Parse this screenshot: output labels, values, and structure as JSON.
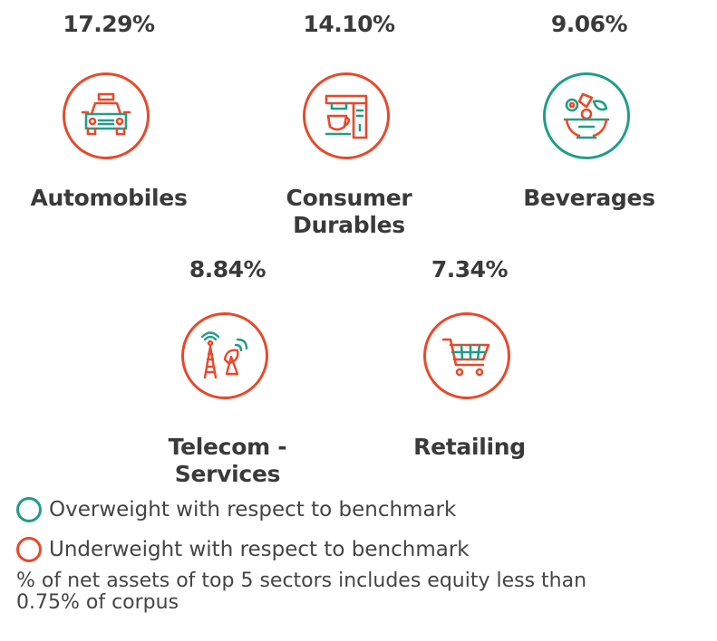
{
  "sectors": [
    {
      "pct": "17.29%",
      "name": "Automobiles",
      "icon": "car-icon",
      "weight": "underweight"
    },
    {
      "pct": "14.10%",
      "name": "Consumer Durables",
      "icon": "mixer-icon",
      "weight": "underweight"
    },
    {
      "pct": "9.06%",
      "name": "Beverages",
      "icon": "food-bowl-icon",
      "weight": "overweight"
    },
    {
      "pct": "8.84%",
      "name": "Telecom - Services",
      "icon": "telecom-tower-icon",
      "weight": "underweight"
    },
    {
      "pct": "7.34%",
      "name": "Retailing",
      "icon": "shopping-cart-icon",
      "weight": "underweight"
    }
  ],
  "legend": {
    "overweight": "Overweight with respect to benchmark",
    "underweight": "Underweight with respect to benchmark"
  },
  "note": "% of net assets of top 5 sectors includes equity less than 0.75% of corpus",
  "colors": {
    "overweight": "#1f9e86",
    "underweight": "#e8492a",
    "text": "#3a3a3a"
  }
}
